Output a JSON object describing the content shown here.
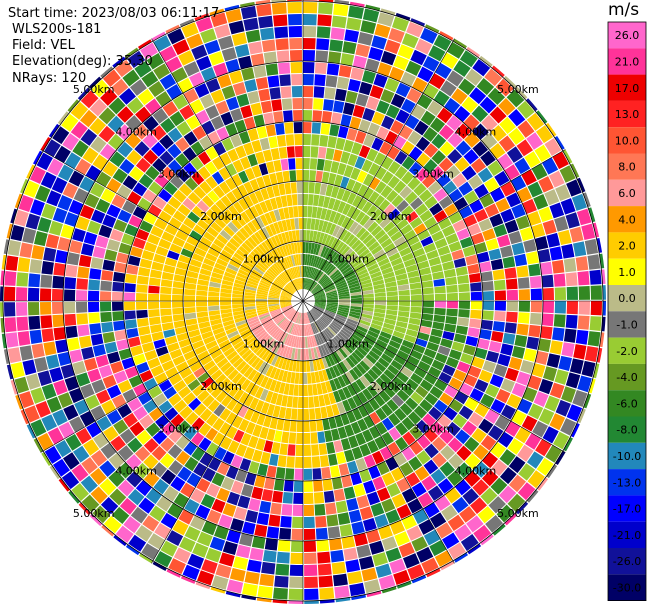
{
  "header": {
    "start_time": "Start time: 2023/08/03 06:11:17",
    "instrument": "WLS200s-181",
    "field": "Field: VEL",
    "elevation": "Elevation(deg): 35.30",
    "nrays": "NRays: 120"
  },
  "colorbar": {
    "title": "m/s",
    "ticks": [
      "26.0",
      "21.0",
      "17.0",
      "13.0",
      "10.0",
      "8.0",
      "6.0",
      "4.0",
      "2.0",
      "1.0",
      "0.0",
      "-1.0",
      "-2.0",
      "-4.0",
      "-6.0",
      "-8.0",
      "-10.0",
      "-13.0",
      "-17.0",
      "-21.0",
      "-26.0",
      "-30.0"
    ],
    "colors": [
      "#ff66cc",
      "#ff3399",
      "#ee0000",
      "#ff2222",
      "#ff5533",
      "#ff7755",
      "#ff9999",
      "#ff9900",
      "#ffcc00",
      "#ffff00",
      "#bbbb88",
      "#777777",
      "#99cc33",
      "#669922",
      "#338822",
      "#228833",
      "#2288bb",
      "#0033ee",
      "#0000ff",
      "#0000cc",
      "#111199",
      "#000066"
    ]
  },
  "chart_data": {
    "type": "heatmap",
    "title": "",
    "field": "VEL",
    "units": "m/s",
    "n_rays": 120,
    "elevation_deg": 35.3,
    "range_rings": [
      {
        "range_km": "1.00km",
        "labels": [
          "1.00km",
          "1.00km",
          "1.00km",
          "1.00km"
        ]
      },
      {
        "range_km": "2.00km",
        "labels": [
          "2.00km",
          "2.00km",
          "2.00km",
          "2.00km"
        ]
      },
      {
        "range_km": "3.00km",
        "labels": [
          "3.00km",
          "3.00km",
          "3.00km",
          "3.00km"
        ]
      },
      {
        "range_km": "4.00km",
        "labels": [
          "4.00km",
          "4.00km",
          "4.00km",
          "4.00km"
        ]
      },
      {
        "range_km": "5.00km",
        "labels": [
          "5.00km",
          "5.00km",
          "5.00km",
          "5.00km"
        ]
      }
    ],
    "value_range": [
      -30.0,
      30.0
    ],
    "regions": [
      {
        "description": "near-range west/northwest",
        "velocity": 2.0
      },
      {
        "description": "near-range north/east",
        "velocity": -2.0
      },
      {
        "description": "near-range northeast core",
        "velocity": -6.0
      },
      {
        "description": "near-range south/southwest",
        "velocity": 6.0
      },
      {
        "description": "mid-range southeast",
        "velocity": -6.0
      },
      {
        "description": "outer range (noise)",
        "velocity": null
      }
    ]
  }
}
